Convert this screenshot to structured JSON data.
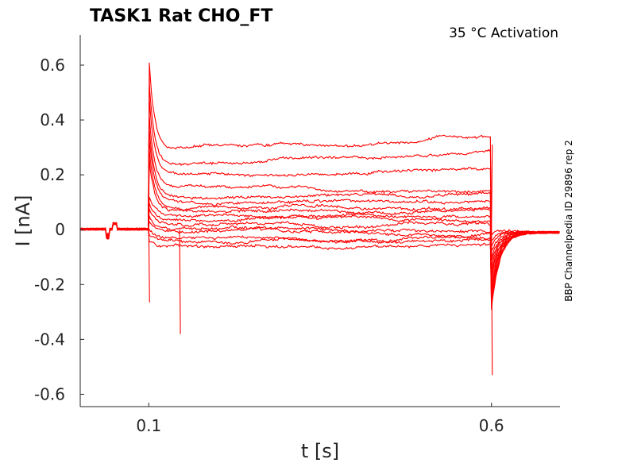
{
  "chart_data": {
    "type": "line",
    "title": "TASK1  Rat  CHO_FT",
    "annotation": "35 °C  Activation",
    "side_label": "BBP Channelpedia ID 29896 rep 2",
    "xlabel": "t [s]",
    "ylabel": "I [nA]",
    "xlim": [
      0.0,
      0.7
    ],
    "ylim": [
      -0.645,
      0.71
    ],
    "x_ticks": [
      0.1,
      0.6
    ],
    "x_tick_labels": [
      "0.1",
      "0.6"
    ],
    "y_ticks": [
      0.6,
      0.4,
      0.2,
      0,
      -0.2,
      -0.4,
      -0.6
    ],
    "y_tick_labels": [
      "0.6",
      "0.4",
      "0.2",
      "0",
      "-0.2",
      "-0.4",
      "-0.6"
    ],
    "grid": false,
    "line_color": "#ff0000",
    "pulse": {
      "start": 0.1,
      "end": 0.6
    },
    "steady_state_levels": [
      0.29,
      0.23,
      0.195,
      0.15,
      0.12,
      0.1,
      0.082,
      0.065,
      0.05,
      0.035,
      0.02,
      0.005,
      -0.01,
      -0.03,
      -0.045,
      -0.06
    ],
    "onset_peak": 0.59,
    "onset_trough": -0.265,
    "offset_trough": -0.53,
    "artifact": {
      "t": 0.145,
      "value": -0.38
    }
  }
}
